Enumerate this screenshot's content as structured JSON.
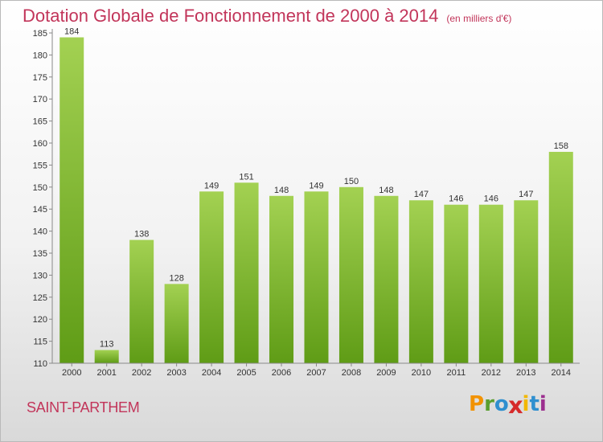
{
  "chart_data": {
    "type": "bar",
    "title": "Dotation Globale de Fonctionnement de 2000 à 2014",
    "subtitle": "(en milliers d'€)",
    "xlabel": "",
    "ylabel": "",
    "categories": [
      "2000",
      "2001",
      "2002",
      "2003",
      "2004",
      "2005",
      "2006",
      "2007",
      "2008",
      "2009",
      "2010",
      "2011",
      "2012",
      "2013",
      "2014"
    ],
    "values": [
      184,
      113,
      138,
      128,
      149,
      151,
      148,
      149,
      150,
      148,
      147,
      146,
      146,
      147,
      158
    ],
    "ylim": [
      110,
      185
    ],
    "yticks": [
      110,
      115,
      120,
      125,
      130,
      135,
      140,
      145,
      150,
      155,
      160,
      165,
      170,
      175,
      180,
      185
    ],
    "grid": false,
    "bar_color_top": "#a3d152",
    "bar_color_bottom": "#5f9c16"
  },
  "footer": {
    "commune": "SAINT-PARTHEM",
    "logo_letters": [
      "P",
      "r",
      "o",
      "x",
      "i",
      "t",
      "i"
    ],
    "logo_colors": [
      "#f29200",
      "#5a9e2f",
      "#2f8fcf",
      "#d62a2a",
      "#f2b800",
      "#2f8fcf",
      "#9c2f8f"
    ]
  },
  "colors": {
    "title": "#c2355a",
    "axis": "#888888"
  }
}
